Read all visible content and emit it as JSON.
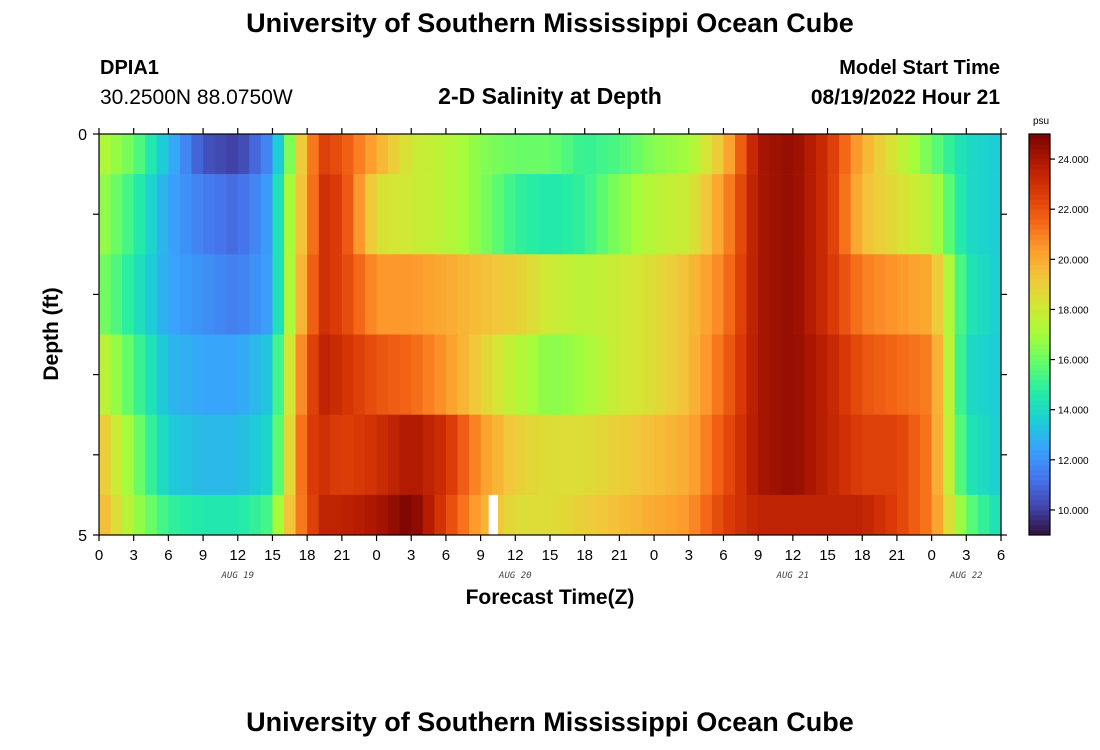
{
  "header": {
    "main_title": "University of Southern Mississippi Ocean Cube",
    "station": "DPIA1",
    "coords": "30.2500N  88.0750W",
    "subtitle": "2-D Salinity at Depth",
    "start_label": "Model Start Time",
    "start_value": "08/19/2022 Hour 21"
  },
  "footer": {
    "title": "University of Southern Mississippi Ocean Cube"
  },
  "colors": {
    "scale": [
      "#30123b",
      "#4145ab",
      "#4675ed",
      "#39a2fc",
      "#1bcfd4",
      "#24eca6",
      "#61fc6c",
      "#a4fc3b",
      "#d1e834",
      "#f3c63a",
      "#fe9b2d",
      "#f36315",
      "#d93806",
      "#b11901",
      "#7a0403"
    ]
  },
  "chart_data": {
    "type": "heatmap",
    "title": "2-D Salinity at Depth",
    "xlabel": "Forecast Time(Z)",
    "ylabel": "Depth (ft)",
    "x_unit": "hours since 08/19 00Z",
    "x_range": [
      0,
      78
    ],
    "y_range": [
      0,
      5
    ],
    "y_ticks": [
      0,
      1,
      2,
      3,
      4,
      5
    ],
    "y_tick_labels": [
      "0",
      "",
      "",
      "",
      "",
      "5"
    ],
    "x_tick_labels": [
      "0",
      "3",
      "6",
      "9",
      "12",
      "15",
      "18",
      "21",
      "0",
      "3",
      "6",
      "9",
      "12",
      "15",
      "18",
      "21",
      "0",
      "3",
      "6",
      "9",
      "12",
      "15",
      "18",
      "21",
      "0",
      "3",
      "6"
    ],
    "date_labels": [
      {
        "label": "AUG 19",
        "at_hour": 12
      },
      {
        "label": "AUG 20",
        "at_hour": 36
      },
      {
        "label": "AUG 21",
        "at_hour": 60
      },
      {
        "label": "AUG 22",
        "at_hour": 75
      }
    ],
    "depth_bins": [
      0,
      0.5,
      1.5,
      2.5,
      3.5,
      4.5
    ],
    "depth_bin_edges": [
      0,
      0.5,
      1.5,
      2.5,
      3.5,
      4.5,
      5
    ],
    "time_knots": [
      0,
      3,
      6,
      9,
      12,
      15,
      16,
      18,
      19.5,
      21,
      24,
      27,
      30,
      33,
      36,
      39,
      42,
      45,
      48,
      51,
      54,
      57,
      60,
      63,
      66,
      69,
      72,
      75,
      78
    ],
    "salinity_psu": [
      [
        17.5,
        16.0,
        13.0,
        10.5,
        10.0,
        12.0,
        15.0,
        20.5,
        22.5,
        22.0,
        20.0,
        18.0,
        17.5,
        16.5,
        16.0,
        16.0,
        15.0,
        15.5,
        16.5,
        17.0,
        19.5,
        24.0,
        24.5,
        23.0,
        20.0,
        18.0,
        16.0,
        14.0,
        13.5
      ],
      [
        17.0,
        15.0,
        12.5,
        11.5,
        11.0,
        12.5,
        16.0,
        20.5,
        23.0,
        22.5,
        18.5,
        18.0,
        17.5,
        16.5,
        15.0,
        14.5,
        15.0,
        16.5,
        17.5,
        18.0,
        20.5,
        24.0,
        24.5,
        23.0,
        19.5,
        18.5,
        17.5,
        14.0,
        13.5
      ],
      [
        16.5,
        14.5,
        12.5,
        12.0,
        11.5,
        12.5,
        16.0,
        21.0,
        23.0,
        22.5,
        20.5,
        20.5,
        20.0,
        19.5,
        19.0,
        18.0,
        17.5,
        18.0,
        18.5,
        19.5,
        21.0,
        24.0,
        24.5,
        23.0,
        21.0,
        20.5,
        20.0,
        14.5,
        13.5
      ],
      [
        18.0,
        15.5,
        13.0,
        12.5,
        12.5,
        13.5,
        17.0,
        22.0,
        23.5,
        23.0,
        22.0,
        21.5,
        20.5,
        19.0,
        17.5,
        16.5,
        17.0,
        18.0,
        18.5,
        19.5,
        21.5,
        24.0,
        24.5,
        23.5,
        22.0,
        21.5,
        21.0,
        14.0,
        13.5
      ],
      [
        19.5,
        16.5,
        13.5,
        13.0,
        13.0,
        14.0,
        17.5,
        22.5,
        23.0,
        22.5,
        23.0,
        24.0,
        23.0,
        20.5,
        19.0,
        18.5,
        18.5,
        19.0,
        19.5,
        20.0,
        22.0,
        24.0,
        24.5,
        23.5,
        22.5,
        22.5,
        21.0,
        14.5,
        13.5
      ],
      [
        20.0,
        17.0,
        15.0,
        14.5,
        14.5,
        15.5,
        18.5,
        22.0,
        23.5,
        23.5,
        24.0,
        25.0,
        22.5,
        20.0,
        18.5,
        18.5,
        19.0,
        19.5,
        20.0,
        20.5,
        22.5,
        23.5,
        23.5,
        23.5,
        23.5,
        22.5,
        21.0,
        16.0,
        14.0
      ]
    ],
    "missing_data": {
      "hour_start": 33.7,
      "hour_end": 34.5,
      "depth_bin_index": 5
    },
    "colorbar": {
      "unit": "psu",
      "range": [
        9,
        25
      ],
      "ticks": [
        10,
        12,
        14,
        16,
        18,
        20,
        22,
        24
      ],
      "tick_labels": [
        "10.000",
        "12.000",
        "14.000",
        "16.000",
        "18.000",
        "20.000",
        "22.000",
        "24.000"
      ]
    }
  }
}
